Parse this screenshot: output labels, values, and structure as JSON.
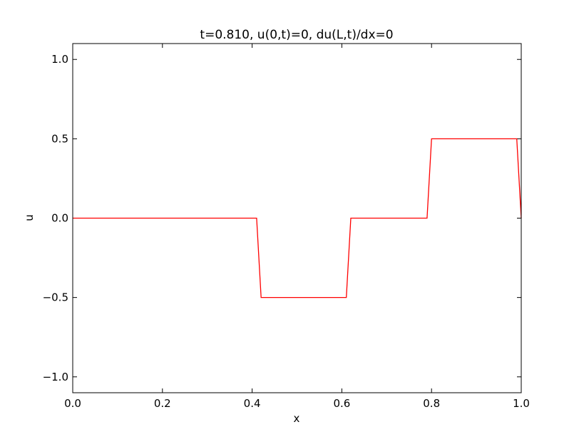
{
  "chart_data": {
    "type": "line",
    "title": "t=0.810, u(0,t)=0, du(L,t)/dx=0",
    "xlabel": "x",
    "ylabel": "u",
    "xlim": [
      0.0,
      1.0
    ],
    "ylim": [
      -1.1,
      1.1
    ],
    "x_ticks": [
      0.0,
      0.2,
      0.4,
      0.6,
      0.8,
      1.0
    ],
    "x_tick_labels": [
      "0.0",
      "0.2",
      "0.4",
      "0.6",
      "0.8",
      "1.0"
    ],
    "y_ticks": [
      -1.0,
      -0.5,
      0.0,
      0.5,
      1.0
    ],
    "y_tick_labels": [
      "−1.0",
      "−0.5",
      "0.0",
      "0.5",
      "1.0"
    ],
    "grid": false,
    "series": [
      {
        "color": "#ff0000",
        "x": [
          0.0,
          0.41,
          0.42,
          0.61,
          0.62,
          0.79,
          0.8,
          0.99,
          1.0
        ],
        "y": [
          0.0,
          0.0,
          -0.5,
          -0.5,
          0.0,
          0.0,
          0.5,
          0.5,
          0.0
        ]
      }
    ]
  }
}
